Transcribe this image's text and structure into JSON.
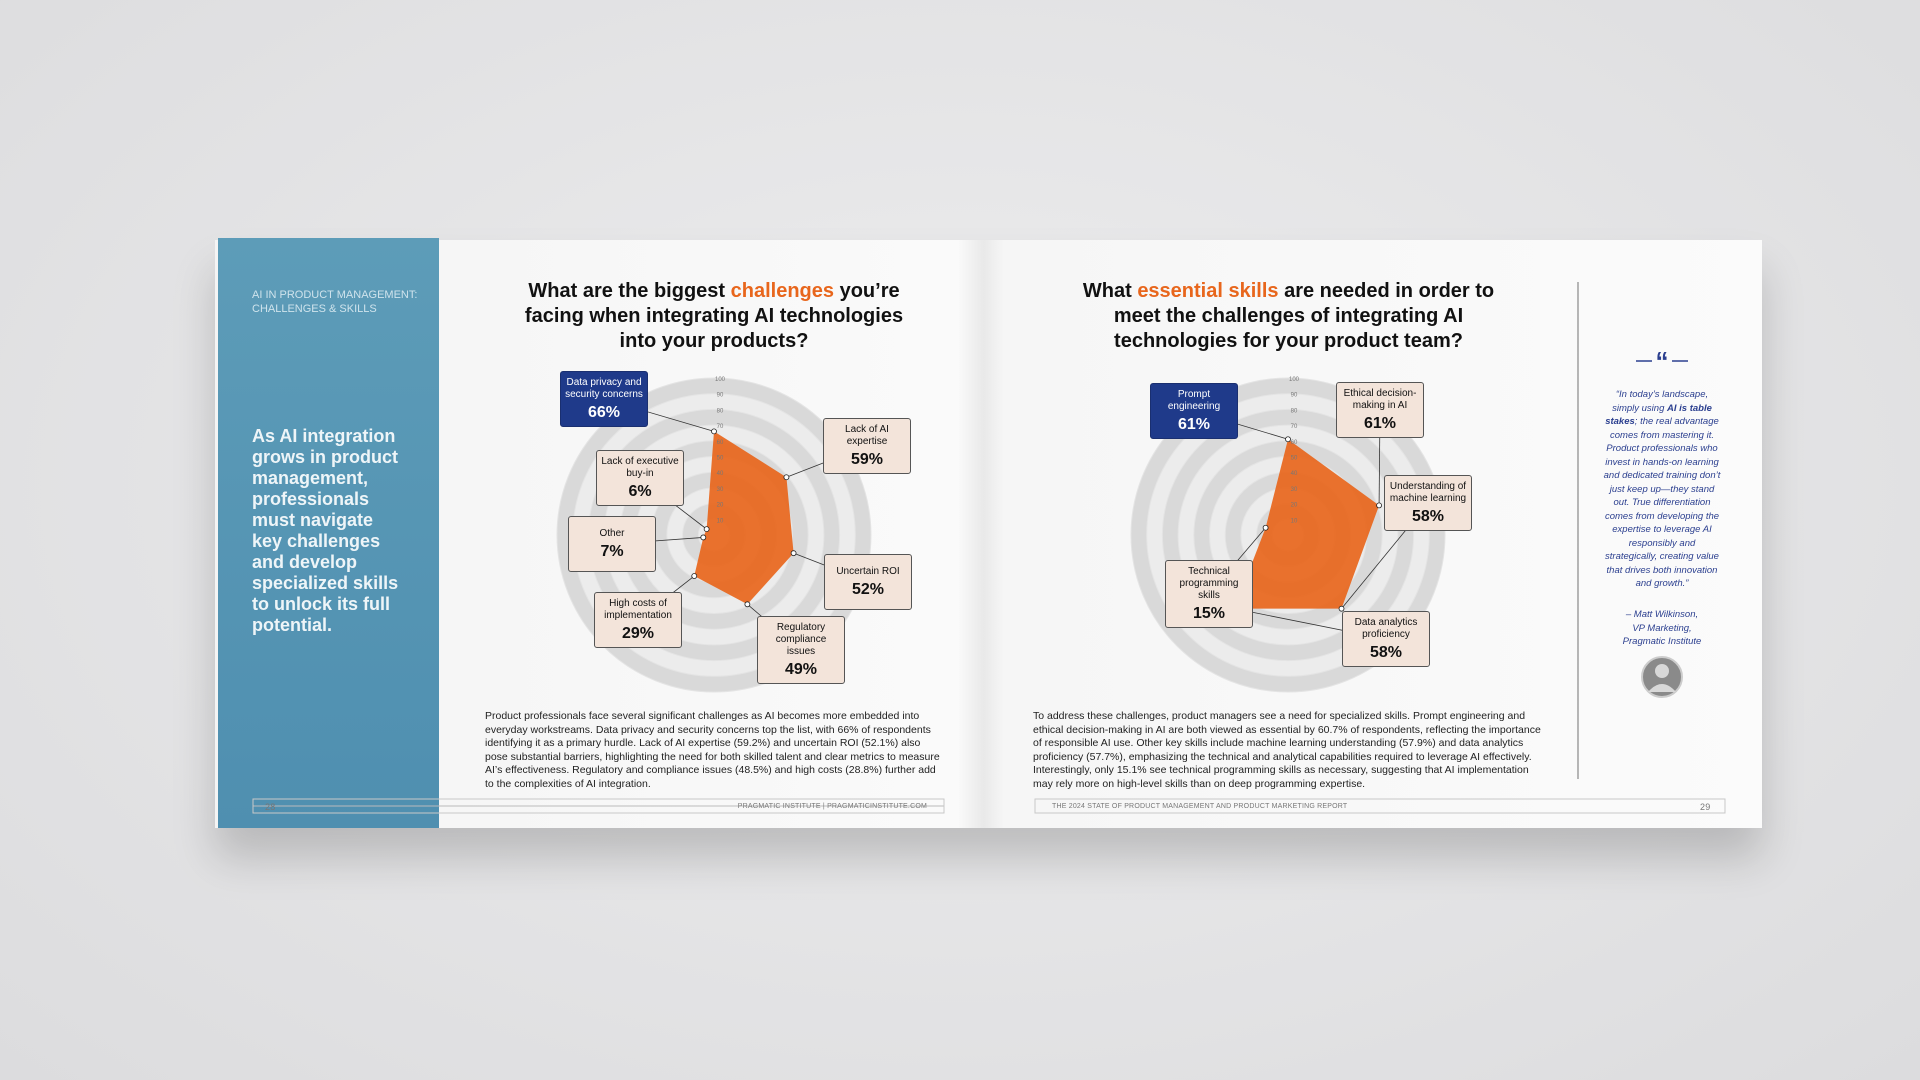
{
  "chart_data": [
    {
      "type": "radar",
      "title_before": "What are the biggest ",
      "title_highlight": "challenges",
      "title_after": " you’re facing when integrating AI technologies into your products?",
      "categories": [
        "Data privacy and security concerns",
        "Lack of AI expertise",
        "Uncertain ROI",
        "Regulatory compliance issues",
        "High costs of implementation",
        "Other",
        "Lack of executive buy-in"
      ],
      "values": [
        66,
        59,
        52,
        49,
        29,
        7,
        6
      ],
      "value_labels": [
        "66%",
        "59%",
        "52%",
        "49%",
        "29%",
        "7%",
        "6%"
      ],
      "rlim": [
        0,
        100
      ],
      "rticks": [
        10,
        20,
        30,
        40,
        50,
        60,
        70,
        80,
        90,
        100
      ],
      "color": "#e8661c",
      "highlight_color": "#1f3a8a"
    },
    {
      "type": "radar",
      "title_before": "What ",
      "title_highlight": "essential skills",
      "title_after": " are needed in order to meet the challenges of integrating AI technologies for your product team?",
      "categories": [
        "Prompt engineering",
        "Ethical decision-making in AI",
        "Understanding of machine learning",
        "Data analytics proficiency",
        "Technical programming skills"
      ],
      "values": [
        61,
        61,
        58,
        58,
        15
      ],
      "value_labels": [
        "61%",
        "61%",
        "58%",
        "58%",
        "15%"
      ],
      "rlim": [
        0,
        100
      ],
      "rticks": [
        10,
        20,
        30,
        40,
        50,
        60,
        70,
        80,
        90,
        100
      ],
      "color": "#e8661c",
      "highlight_color": "#1f3a8a"
    }
  ],
  "sidebar": {
    "section": [
      "AI IN PRODUCT MANAGEMENT:",
      "CHALLENGES & SKILLS"
    ],
    "statement": "As AI integration grows in product management, professionals must navigate key challenges and develop specialized skills to unlock its full potential."
  },
  "paragraphs": [
    "Product professionals face several significant challenges as AI becomes more embedded into everyday workstreams. Data privacy and security concerns top the list, with 66% of respondents identifying it as a primary hurdle. Lack of AI expertise (59.2%) and uncertain ROI (52.1%) also pose substantial barriers, highlighting the need for both skilled talent and clear metrics to measure AI’s effectiveness. Regulatory and compliance issues (48.5%) and high costs (28.8%) further add to the complexities of AI integration.",
    "To address these challenges, product managers see a need for specialized skills. Prompt engineering and ethical decision-making in AI are both viewed as essential by 60.7% of respondents, reflecting the importance of responsible AI use. Other key skills include machine learning understanding (57.9%) and data analytics proficiency (57.7%), emphasizing the technical and analytical capabilities required to leverage AI effectively. Interestingly, only 15.1% see technical programming skills as necessary, suggesting that AI implementation may rely more on high-level skills than on deep programming expertise."
  ],
  "quote": {
    "before": "“In today’s landscape, simply using ",
    "bold": "AI is table stakes",
    "after": "; the real advantage comes from mastering it. Product professionals who invest in hands-on learning and dedicated training don’t just keep up—they stand out. True differentiation comes from developing the expertise to leverage AI responsibly and strategically, creating value that drives both innovation and growth.”",
    "attribution": [
      "– Matt Wilkinson,",
      "VP Marketing,",
      "Pragmatic Institute"
    ]
  },
  "footer": {
    "left_page": "28",
    "left_text": "PRAGMATIC INSTITUTE | PRAGMATICINSTITUTE.COM",
    "right_text": "THE 2024 STATE OF PRODUCT MANAGEMENT AND PRODUCT MARKETING REPORT",
    "right_page": "29"
  }
}
